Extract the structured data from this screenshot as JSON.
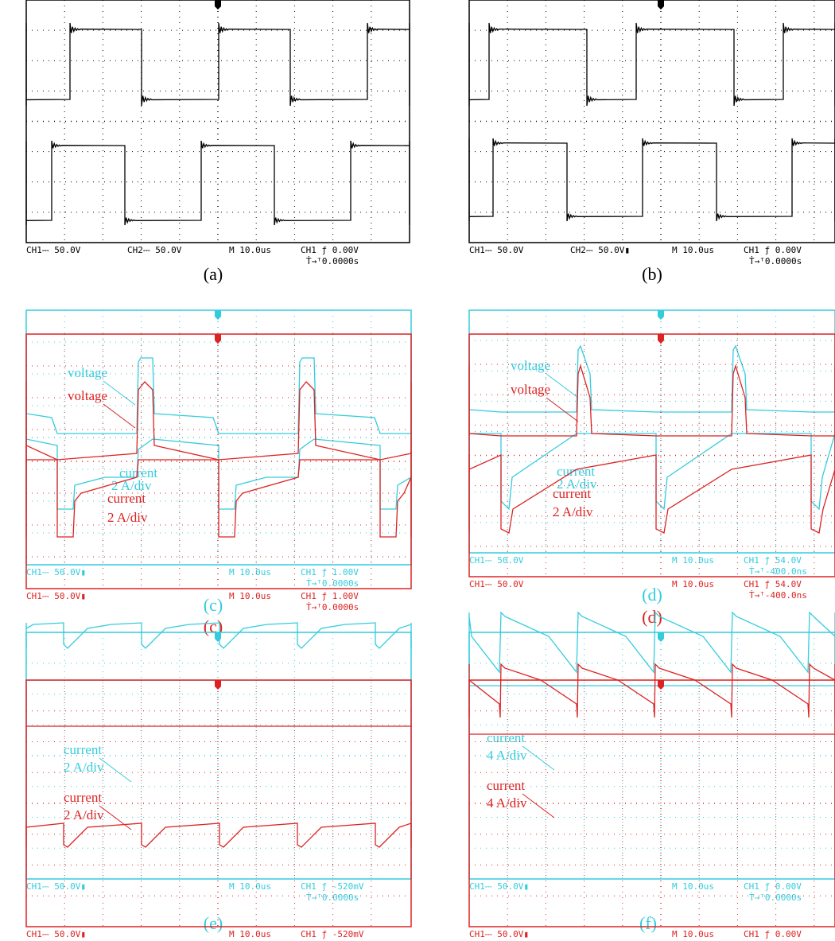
{
  "panels": [
    {
      "screens": [
        {
          "color": "#000000",
          "label": "(a)",
          "status": [
            [
              "CH1⎓ 50.0V",
              "CH2⎓ 50.0V",
              "M 10.0us",
              "CH1 ƒ 0.00V"
            ],
            [
              "Ṫ→ᵀ0.0000s"
            ]
          ],
          "annotations": []
        }
      ]
    },
    {
      "screens": [
        {
          "color": "#000000",
          "label": "(b)",
          "status": [
            [
              "CH1⎓ 50.0V",
              "CH2⎓ 50.0V▮",
              "M 10.0us",
              "CH1 ƒ 0.00V"
            ],
            [
              "Ṫ→ᵀ0.0000s"
            ]
          ],
          "annotations": []
        }
      ]
    },
    {
      "screens": [
        {
          "color": "#33ccdd",
          "label": "(c)",
          "status": [
            [
              "CH1⎓ 50.0V▮",
              "M 10.0us",
              "CH1 ƒ 1.00V"
            ],
            [
              "Ṫ→ᵀ0.0000s"
            ]
          ],
          "annotations": [
            "voltage",
            "current",
            "2 A/div"
          ]
        },
        {
          "color": "#dd2222",
          "label": "(c)",
          "status": [
            [
              "CH1⎓ 50.0V▮",
              "M 10.0us",
              "CH1 ƒ 1.00V"
            ],
            [
              "Ṫ→ᵀ0.0000s"
            ]
          ],
          "annotations": [
            "voltage",
            "current",
            "2 A/div"
          ]
        }
      ]
    },
    {
      "screens": [
        {
          "color": "#33ccdd",
          "label": "(d)",
          "status": [
            [
              "CH1⎓ 50.0V",
              "M 10.0us",
              "CH1 ƒ 54.0V"
            ],
            [
              "Ṫ→ᵀ-400.0ns"
            ]
          ],
          "annotations": [
            "voltage",
            "current",
            "2 A/div"
          ]
        },
        {
          "color": "#dd2222",
          "label": "(d)",
          "status": [
            [
              "CH1⎓ 50.0V",
              "M 10.0us",
              "CH1 ƒ 54.0V"
            ],
            [
              "Ṫ→ᵀ-400.0ns"
            ]
          ],
          "annotations": [
            "voltage",
            "current",
            "2 A/div"
          ]
        }
      ]
    },
    {
      "screens": [
        {
          "color": "#33ccdd",
          "label": "(e)",
          "status": [
            [
              "CH1⎓ 50.0V▮",
              "M 10.0us",
              "CH1 ƒ -520mV"
            ],
            [
              "Ṫ→ᵀ0.0000s"
            ]
          ],
          "annotations": [
            "current",
            "2 A/div"
          ]
        },
        {
          "color": "#dd2222",
          "status": [
            [
              "CH1⎓ 50.0V▮",
              "M 10.0us",
              "CH1 ƒ -520mV"
            ]
          ],
          "annotations": [
            "current",
            "2 A/div"
          ]
        }
      ]
    },
    {
      "screens": [
        {
          "color": "#33ccdd",
          "label": "(f)",
          "status": [
            [
              "CH1⎓ 50.0V▮",
              "M 10.0us",
              "CH1 ƒ 0.00V"
            ],
            [
              "Ṫ→ᵀ0.0000s"
            ]
          ],
          "annotations": [
            "current",
            "4 A/div"
          ]
        },
        {
          "color": "#dd2222",
          "status": [
            [
              "CH1⎓ 50.0V▮",
              "M 10.0us",
              "CH1 ƒ 0.00V"
            ]
          ],
          "annotations": [
            "current",
            "4 A/div"
          ]
        }
      ]
    }
  ]
}
